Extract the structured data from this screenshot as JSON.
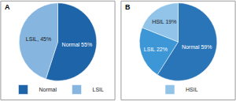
{
  "chart_data": [
    {
      "type": "pie",
      "title": "A",
      "categories": [
        "Normal",
        "LSIL"
      ],
      "values": [
        55,
        45
      ],
      "value_labels": [
        "Normal 55%",
        "LSIL, 45%"
      ],
      "colors": [
        "#1e64a8",
        "#86b6df"
      ],
      "data_labels": true,
      "legend": "bottom"
    },
    {
      "type": "pie",
      "title": "B",
      "categories": [
        "Normal",
        "LSIL",
        "HSIL"
      ],
      "values": [
        59,
        22,
        19
      ],
      "value_labels": [
        "Normal 59%",
        "LSIL 22%",
        "HSIL 19%"
      ],
      "colors": [
        "#2a74b8",
        "#3d96d6",
        "#92c3e9"
      ],
      "data_labels": true,
      "legend": "bottom"
    }
  ]
}
